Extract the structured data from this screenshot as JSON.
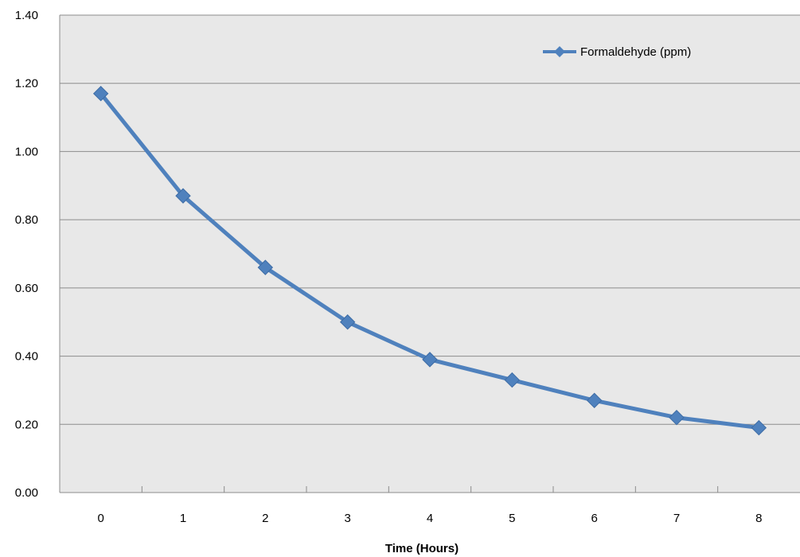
{
  "chart_data": {
    "type": "line",
    "title": "",
    "xlabel": "Time (Hours)",
    "ylabel": "",
    "categories": [
      "0",
      "1",
      "2",
      "3",
      "4",
      "5",
      "6",
      "7",
      "8"
    ],
    "y_ticks": [
      "0.00",
      "0.20",
      "0.40",
      "0.60",
      "0.80",
      "1.00",
      "1.20",
      "1.40"
    ],
    "ylim": [
      0,
      1.4
    ],
    "grid": true,
    "legend_position": "top-right",
    "series": [
      {
        "name": "Formaldehyde (ppm)",
        "values": [
          1.17,
          0.87,
          0.66,
          0.5,
          0.39,
          0.33,
          0.27,
          0.22,
          0.19
        ],
        "color": "#4F81BD",
        "marker": "diamond"
      }
    ],
    "colors": {
      "plot_background": "#E8E8E8",
      "gridline": "#8C8C8C",
      "axis": "#8C8C8C"
    }
  }
}
